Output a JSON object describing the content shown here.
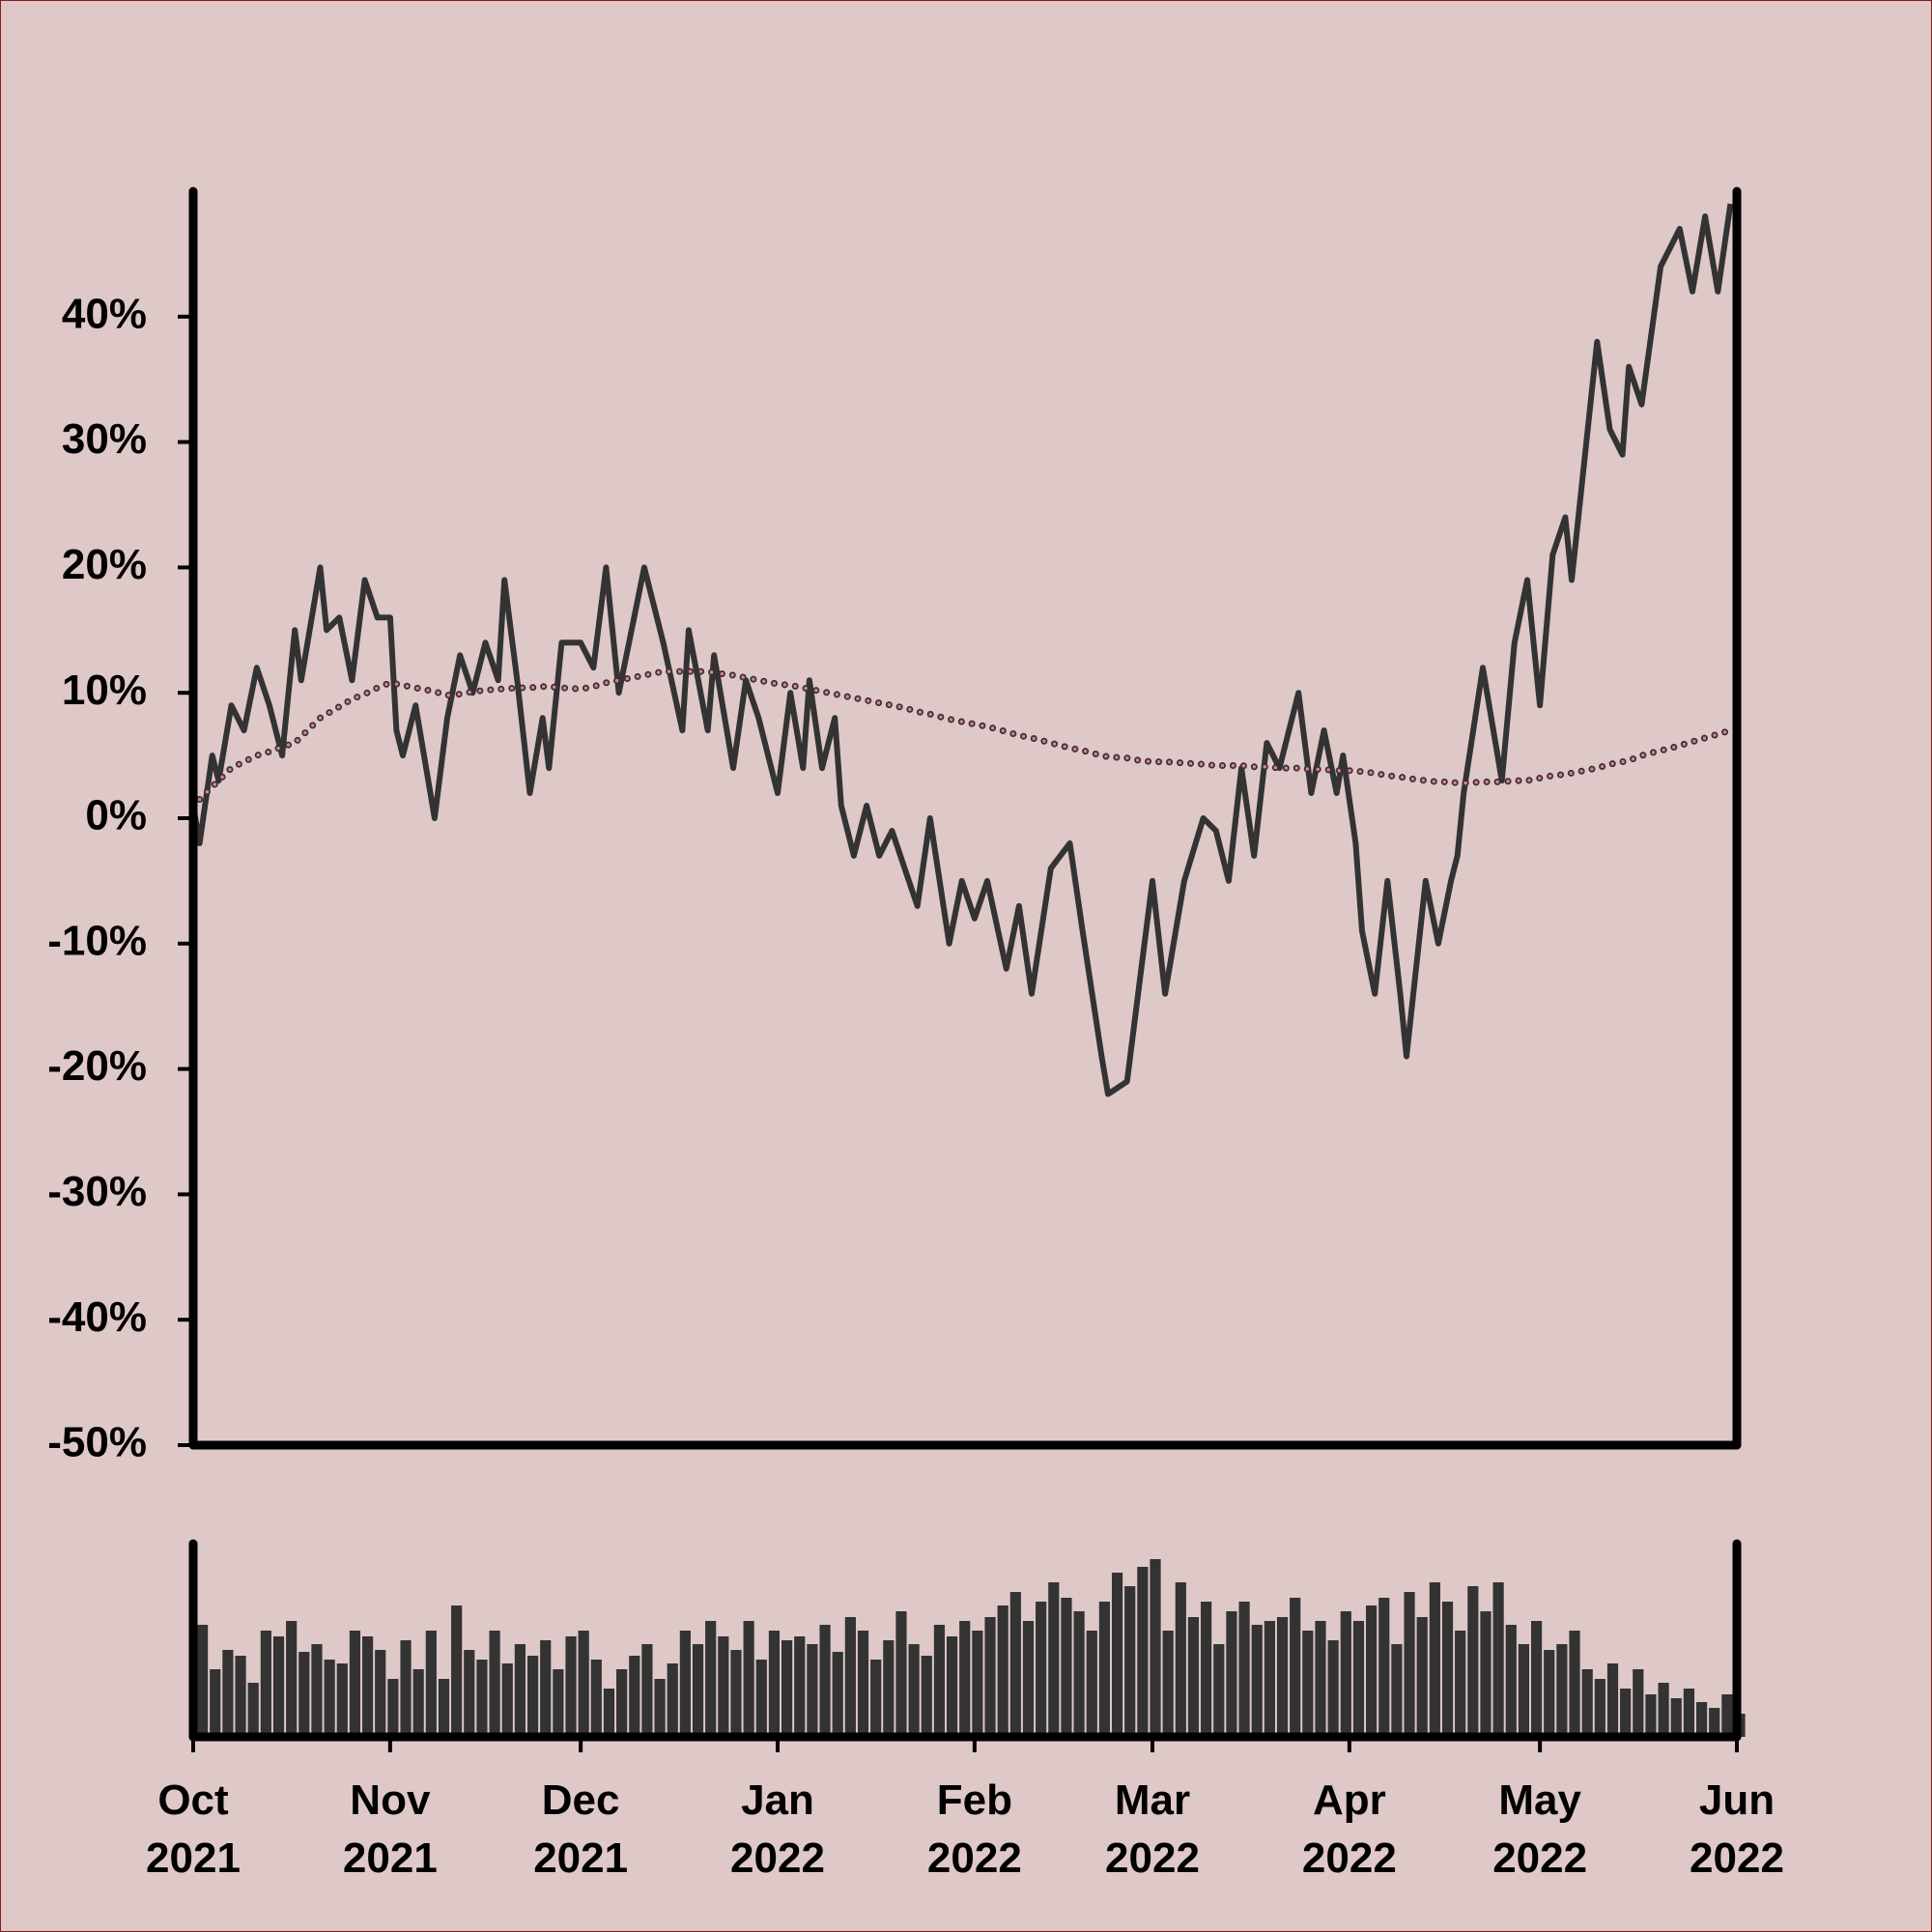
{
  "chart_data": [
    {
      "type": "line",
      "x": [
        0,
        1,
        3,
        4,
        6,
        8,
        10,
        12,
        14,
        16,
        17,
        20,
        21,
        23,
        25,
        27,
        29,
        31,
        32,
        33,
        35,
        38,
        40,
        42,
        44,
        46,
        48,
        49,
        51,
        53,
        55,
        56,
        58,
        61,
        63,
        65,
        67,
        69,
        71,
        74,
        77,
        78,
        81,
        82,
        85,
        87,
        89,
        92,
        94,
        96,
        97,
        99,
        101,
        102,
        104,
        106,
        108,
        110,
        112,
        114,
        116,
        119,
        121,
        123,
        125,
        128,
        130,
        132,
        135,
        138,
        140,
        143,
        144,
        147,
        149,
        151,
        153,
        156,
        159,
        161,
        163,
        165,
        167,
        169,
        171,
        174,
        176,
        178,
        180,
        181,
        183,
        184,
        186,
        188,
        190,
        191,
        194,
        196,
        198,
        199,
        200,
        203,
        206,
        208,
        210,
        212,
        214,
        216,
        217,
        221,
        223,
        225,
        226,
        228,
        231,
        232,
        234,
        236,
        238,
        240,
        242
      ],
      "xlim": [
        0,
        243
      ],
      "ylim": [
        -50,
        50
      ],
      "yticks": [
        {
          "value": -50,
          "label": "-50%"
        },
        {
          "value": -40,
          "label": "-40%"
        },
        {
          "value": -30,
          "label": "-30%"
        },
        {
          "value": -20,
          "label": "-20%"
        },
        {
          "value": -10,
          "label": "-10%"
        },
        {
          "value": 0,
          "label": "0%"
        },
        {
          "value": 10,
          "label": "10%"
        },
        {
          "value": 20,
          "label": "20%"
        },
        {
          "value": 30,
          "label": "30%"
        },
        {
          "value": 40,
          "label": "40%"
        }
      ],
      "series": [
        {
          "color": "#333333",
          "values": [
            1,
            -2,
            5,
            3,
            9,
            7,
            12,
            9,
            5,
            15,
            11,
            20,
            15,
            16,
            11,
            19,
            16,
            16,
            7,
            5,
            9,
            0,
            8,
            13,
            10,
            14,
            11,
            19,
            11,
            2,
            8,
            4,
            14,
            14,
            12,
            20,
            10,
            15,
            20,
            14,
            7,
            15,
            7,
            13,
            4,
            11,
            8,
            2,
            10,
            4,
            11,
            4,
            8,
            1,
            -3,
            1,
            -3,
            -1,
            -4,
            -7,
            0,
            -10,
            -5,
            -8,
            -5,
            -12,
            -7,
            -14,
            -4,
            -2,
            -9,
            -19,
            -22,
            -21,
            -13,
            -5,
            -14,
            -5,
            0,
            -1,
            -5,
            4,
            -3,
            6,
            4,
            10,
            2,
            7,
            2,
            5,
            -2,
            -9,
            -14,
            -5,
            -14,
            -19,
            -5,
            -10,
            -5,
            -3,
            2,
            12,
            3,
            14,
            19,
            9,
            21,
            24,
            19,
            38,
            31,
            29,
            36,
            33,
            44,
            45,
            47,
            42,
            48,
            42,
            49
          ]
        },
        {
          "color": "#e8799e",
          "style": "dotted",
          "values": [
            null,
            1.5,
            2.5,
            3,
            4,
            4.5,
            5,
            5.3,
            5.7,
            6,
            6.5,
            8,
            8.3,
            8.9,
            9.5,
            9.9,
            10.4,
            10.8,
            10.7,
            10.6,
            10.4,
            10.1,
            9.8,
            9.9,
            10.1,
            10.2,
            10.3,
            10.3,
            10.4,
            10.4,
            10.5,
            10.5,
            10.4,
            10.3,
            10.5,
            10.8,
            11,
            11.2,
            11.4,
            11.7,
            11.7,
            11.7,
            11.7,
            11.6,
            11.4,
            11.2,
            11,
            10.7,
            10.6,
            10.4,
            10.3,
            10.1,
            9.9,
            9.8,
            9.6,
            9.4,
            9.2,
            9,
            8.8,
            8.5,
            8.3,
            7.9,
            7.7,
            7.5,
            7.3,
            6.9,
            6.6,
            6.4,
            6,
            5.6,
            5.4,
            5,
            4.9,
            4.8,
            4.6,
            4.5,
            4.5,
            4.4,
            4.3,
            4.2,
            4.2,
            4.2,
            4.1,
            4.1,
            4,
            4,
            3.9,
            3.9,
            3.8,
            3.8,
            3.8,
            3.7,
            3.6,
            3.4,
            3.3,
            3.2,
            3,
            2.9,
            2.9,
            2.8,
            2.8,
            2.9,
            2.9,
            3,
            3,
            3.2,
            3.4,
            3.5,
            3.6,
            4,
            4.3,
            4.5,
            4.6,
            5,
            5.4,
            5.5,
            5.8,
            6.1,
            6.4,
            6.7,
            7
          ]
        }
      ]
    },
    {
      "type": "bar",
      "x": [
        0,
        2,
        4,
        6,
        8,
        10,
        12,
        14,
        16,
        18,
        20,
        22,
        24,
        26,
        28,
        30,
        32,
        34,
        36,
        38,
        40,
        42,
        44,
        46,
        48,
        50,
        52,
        54,
        56,
        58,
        60,
        62,
        64,
        66,
        68,
        70,
        72,
        74,
        76,
        78,
        80,
        82,
        84,
        86,
        88,
        90,
        92,
        94,
        96,
        98,
        100,
        102,
        104,
        106,
        108,
        110,
        112,
        114,
        116,
        118,
        120,
        122,
        124,
        126,
        128,
        130,
        132,
        134,
        136,
        138,
        140,
        142,
        144,
        146,
        148,
        150,
        152,
        154,
        156,
        158,
        160,
        162,
        164,
        166,
        168,
        170,
        172,
        174,
        176,
        178,
        180,
        182,
        184,
        186,
        188,
        190,
        192,
        194,
        196,
        198,
        200,
        202,
        204,
        206,
        208,
        210,
        212,
        214,
        216,
        218,
        220,
        222,
        224,
        226,
        228,
        230,
        232,
        234,
        236,
        238,
        240,
        242
      ],
      "xlim": [
        0,
        243
      ],
      "ylim": [
        0,
        100
      ],
      "color": "#333333",
      "values": [
        58,
        35,
        45,
        42,
        28,
        55,
        52,
        60,
        44,
        48,
        40,
        38,
        55,
        52,
        45,
        30,
        50,
        35,
        55,
        30,
        68,
        45,
        40,
        55,
        38,
        48,
        42,
        50,
        35,
        52,
        55,
        40,
        25,
        35,
        42,
        48,
        30,
        38,
        55,
        48,
        60,
        52,
        45,
        60,
        40,
        55,
        50,
        52,
        48,
        58,
        44,
        62,
        55,
        40,
        50,
        65,
        48,
        42,
        58,
        52,
        60,
        55,
        62,
        68,
        75,
        60,
        70,
        80,
        72,
        65,
        55,
        70,
        85,
        78,
        88,
        92,
        55,
        80,
        62,
        70,
        48,
        65,
        70,
        58,
        60,
        62,
        72,
        55,
        60,
        50,
        65,
        60,
        68,
        72,
        48,
        75,
        62,
        80,
        70,
        55,
        78,
        65,
        80,
        58,
        48,
        60,
        45,
        48,
        55,
        35,
        30,
        38,
        25,
        35,
        22,
        28,
        20,
        25,
        18,
        15,
        22,
        12
      ],
      "xticks": [
        {
          "value": 0,
          "label": "Oct 2021"
        },
        {
          "value": 31,
          "label": "Nov 2021"
        },
        {
          "value": 61,
          "label": "Dec 2021"
        },
        {
          "value": 92,
          "label": "Jan 2022"
        },
        {
          "value": 123,
          "label": "Feb 2022"
        },
        {
          "value": 151,
          "label": "Mar 2022"
        },
        {
          "value": 182,
          "label": "Apr 2022"
        },
        {
          "value": 212,
          "label": "May 2022"
        },
        {
          "value": 243,
          "label": "Jun 2022"
        }
      ]
    }
  ]
}
